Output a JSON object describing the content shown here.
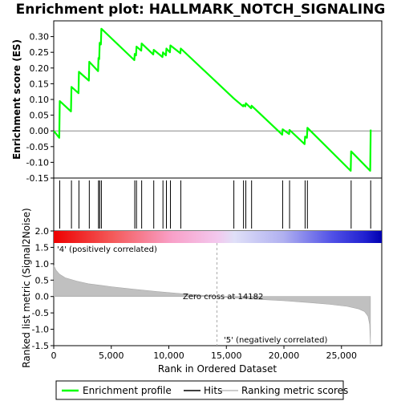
{
  "chart_data": {
    "type": "line",
    "title": "Enrichment plot: HALLMARK_NOTCH_SIGNALING",
    "x_label": "Rank in Ordered Dataset",
    "x_range": [
      0,
      28500
    ],
    "x_ticks": [
      0,
      5000,
      10000,
      15000,
      20000,
      25000
    ],
    "x_tick_labels": [
      "0",
      "5,000",
      "10,000",
      "15,000",
      "20,000",
      "25,000"
    ],
    "panels": {
      "enrichment": {
        "ylabel": "Enrichment score (ES)",
        "ylim": [
          -0.15,
          0.35
        ],
        "y_ticks": [
          -0.15,
          -0.1,
          -0.05,
          0.0,
          0.05,
          0.1,
          0.15,
          0.2,
          0.25,
          0.3
        ],
        "y_tick_labels": [
          "-0.15",
          "-0.10",
          "-0.05",
          "0.00",
          "0.05",
          "0.10",
          "0.15",
          "0.20",
          "0.25",
          "0.30"
        ],
        "color": "#00ff00",
        "series": [
          {
            "name": "Enrichment profile",
            "points": [
              [
                0,
                0.0
              ],
              [
                480,
                -0.022
              ],
              [
                520,
                0.095
              ],
              [
                1500,
                0.062
              ],
              [
                1540,
                0.14
              ],
              [
                2150,
                0.12
              ],
              [
                2190,
                0.188
              ],
              [
                3050,
                0.16
              ],
              [
                3090,
                0.22
              ],
              [
                3850,
                0.19
              ],
              [
                3890,
                0.232
              ],
              [
                3950,
                0.228
              ],
              [
                3990,
                0.28
              ],
              [
                4100,
                0.275
              ],
              [
                4140,
                0.325
              ],
              [
                7000,
                0.225
              ],
              [
                7040,
                0.245
              ],
              [
                7150,
                0.24
              ],
              [
                7190,
                0.268
              ],
              [
                7600,
                0.255
              ],
              [
                7640,
                0.278
              ],
              [
                8650,
                0.243
              ],
              [
                8690,
                0.258
              ],
              [
                9450,
                0.235
              ],
              [
                9490,
                0.25
              ],
              [
                9750,
                0.24
              ],
              [
                9790,
                0.262
              ],
              [
                10100,
                0.25
              ],
              [
                10140,
                0.272
              ],
              [
                11000,
                0.247
              ],
              [
                11040,
                0.262
              ],
              [
                15650,
                0.103
              ],
              [
                16450,
                0.078
              ],
              [
                16490,
                0.083
              ],
              [
                16650,
                0.078
              ],
              [
                16690,
                0.088
              ],
              [
                17150,
                0.072
              ],
              [
                17190,
                0.08
              ],
              [
                19850,
                -0.012
              ],
              [
                19890,
                0.005
              ],
              [
                20450,
                -0.01
              ],
              [
                20490,
                0.003
              ],
              [
                21800,
                -0.042
              ],
              [
                21840,
                -0.018
              ],
              [
                22000,
                -0.022
              ],
              [
                22040,
                0.01
              ],
              [
                25800,
                -0.127
              ],
              [
                25840,
                -0.065
              ],
              [
                27500,
                -0.127
              ],
              [
                27540,
                0.004
              ]
            ]
          }
        ]
      },
      "hits": {
        "name": "Hits",
        "positions": [
          520,
          1540,
          2190,
          3090,
          3890,
          3990,
          4140,
          7040,
          7190,
          7640,
          8690,
          9490,
          9790,
          10140,
          11040,
          15650,
          16490,
          16690,
          17190,
          19890,
          20490,
          21840,
          22040,
          25840,
          27540
        ]
      },
      "metric": {
        "ylabel": "Ranked list metric (Signal2Noise)",
        "ylim": [
          -1.5,
          2.0
        ],
        "y_ticks": [
          -1.5,
          -1.0,
          -0.5,
          0.0,
          0.5,
          1.0,
          1.5,
          2.0
        ],
        "y_tick_labels": [
          "-1.5",
          "-1.0",
          "-0.5",
          "0.0",
          "0.5",
          "1.0",
          "1.5",
          "2.0"
        ],
        "profile": [
          [
            0,
            0.95
          ],
          [
            200,
            0.8
          ],
          [
            500,
            0.68
          ],
          [
            1000,
            0.57
          ],
          [
            2000,
            0.47
          ],
          [
            3000,
            0.39
          ],
          [
            5000,
            0.3
          ],
          [
            7000,
            0.22
          ],
          [
            9000,
            0.15
          ],
          [
            11000,
            0.09
          ],
          [
            13000,
            0.035
          ],
          [
            14182,
            0.0
          ],
          [
            16000,
            -0.05
          ],
          [
            18000,
            -0.09
          ],
          [
            20000,
            -0.13
          ],
          [
            22000,
            -0.18
          ],
          [
            24000,
            -0.24
          ],
          [
            25500,
            -0.3
          ],
          [
            26500,
            -0.38
          ],
          [
            27000,
            -0.46
          ],
          [
            27300,
            -0.6
          ],
          [
            27450,
            -0.85
          ],
          [
            27520,
            -1.45
          ]
        ],
        "zero_cross_label": "Zero cross at 14182",
        "positive_label": "'4' (positively correlated)",
        "negative_label": "'5' (negatively correlated)"
      }
    },
    "legend": {
      "placement": "bottom",
      "entries": [
        {
          "name": "Enrichment profile",
          "color": "#00ff00"
        },
        {
          "name": "Hits",
          "color": "#000000"
        },
        {
          "name": "Ranking metric scores",
          "color": "#bbbbbb"
        }
      ]
    }
  }
}
